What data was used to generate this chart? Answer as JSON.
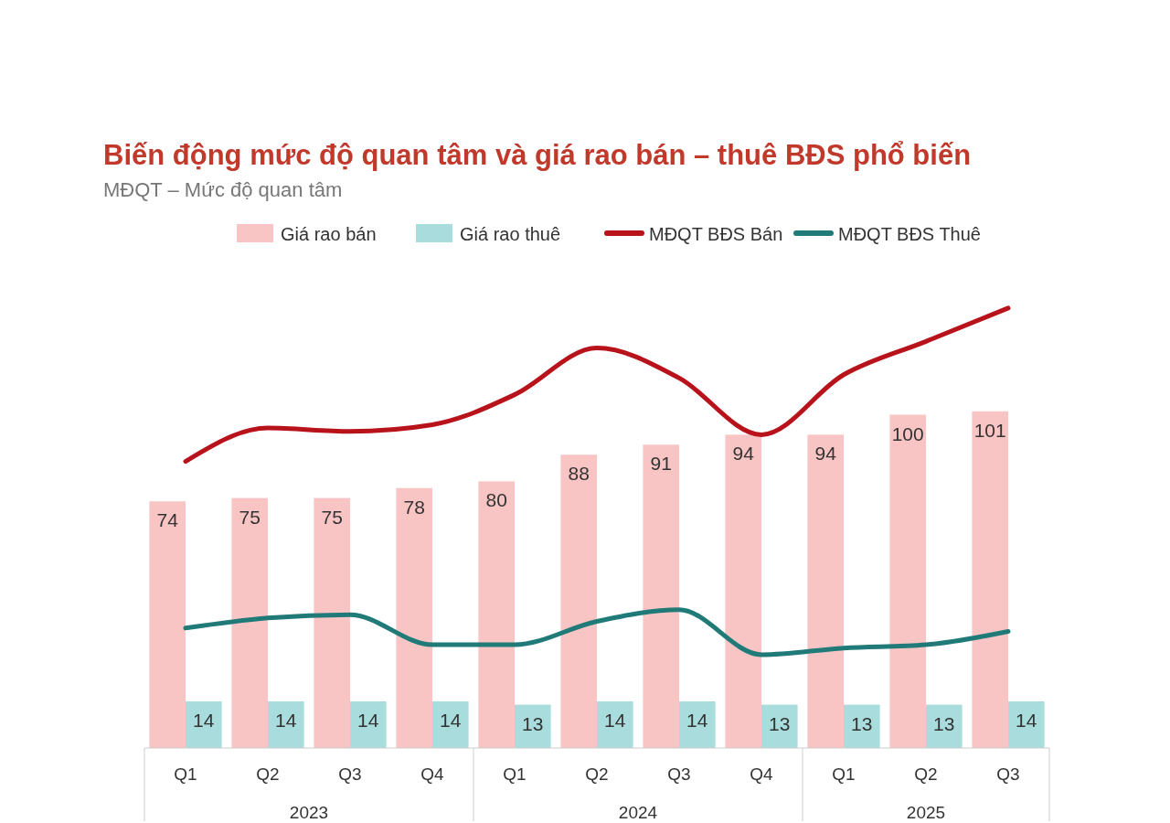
{
  "chart_data": {
    "type": "bar",
    "title": "Biến động mức độ quan tâm và giá rao bán – thuê BĐS phổ biến",
    "subtitle": "MĐQT – Mức độ quan tâm",
    "categories": [
      "Q1",
      "Q2",
      "Q3",
      "Q4",
      "Q1",
      "Q2",
      "Q3",
      "Q4",
      "Q1",
      "Q2",
      "Q3"
    ],
    "annotations": [
      "2023",
      "2024",
      "2025"
    ],
    "tick_labels": "x",
    "legend": "top",
    "series": [
      {
        "name": "Giá rao bán",
        "color": "#f9c4c4",
        "values": [
          74,
          75,
          75,
          78,
          80,
          88,
          91,
          94,
          94,
          100,
          101
        ],
        "value_labels": [
          "74",
          "75",
          "75",
          "78",
          "80",
          "88",
          "91",
          "94",
          "94",
          "100",
          "101"
        ]
      },
      {
        "name": "Giá rao thuê",
        "color": "#a9dcdc",
        "values": [
          14,
          14,
          14,
          14,
          13,
          14,
          14,
          13,
          13,
          13,
          14
        ],
        "value_labels": [
          "14",
          "14",
          "14",
          "14",
          "13",
          "14",
          "14",
          "13",
          "13",
          "13",
          "14"
        ]
      },
      {
        "name": "MĐQT BĐS Bán",
        "type": "line",
        "color": "#b8121b",
        "values": [
          86,
          96,
          95,
          97,
          106,
          120,
          111,
          94,
          112,
          122,
          132
        ]
      },
      {
        "name": "MĐQT BĐS Thuê",
        "type": "line",
        "color": "#1f7a78",
        "values": [
          36,
          39,
          40,
          31,
          31,
          38,
          41.5,
          28,
          30,
          31,
          35
        ]
      }
    ]
  }
}
